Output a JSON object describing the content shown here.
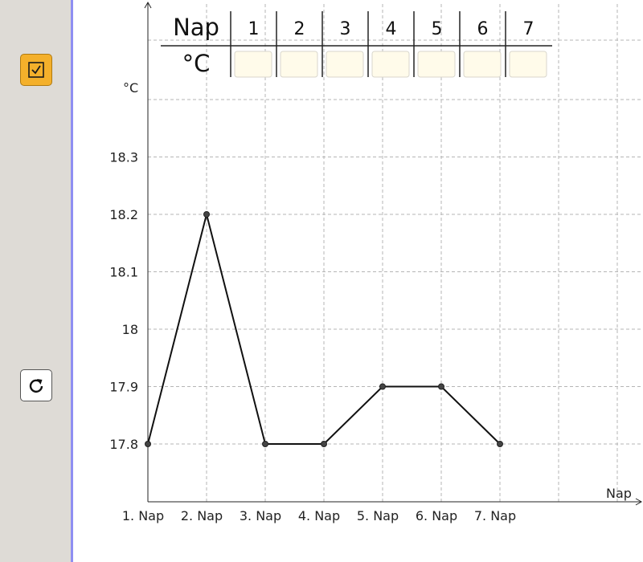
{
  "table": {
    "row1_header": "Nap",
    "row2_header": "°C",
    "days": [
      "1",
      "2",
      "3",
      "4",
      "5",
      "6",
      "7"
    ],
    "inputs": [
      "",
      "",
      "",
      "",
      "",
      "",
      ""
    ]
  },
  "chart_data": {
    "type": "line",
    "title": "",
    "xlabel": "Nap",
    "ylabel": "°C",
    "categories": [
      "1. Nap",
      "2. Nap",
      "3. Nap",
      "4. Nap",
      "5. Nap",
      "6. Nap",
      "7. Nap"
    ],
    "values": [
      17.8,
      18.2,
      17.8,
      17.8,
      17.9,
      17.9,
      17.8
    ],
    "y_ticks": [
      "17.8",
      "17.9",
      "18",
      "18.1",
      "18.2",
      "18.3"
    ],
    "y_tick_values": [
      17.8,
      17.9,
      18.0,
      18.1,
      18.2,
      18.3
    ],
    "ylim": [
      17.7,
      18.45
    ],
    "grid": true,
    "line_color": "#111111"
  },
  "sidebar": {
    "check_icon": "checkbox-check-icon",
    "reset_icon": "reset-icon",
    "check_color": "#f4b02b"
  }
}
